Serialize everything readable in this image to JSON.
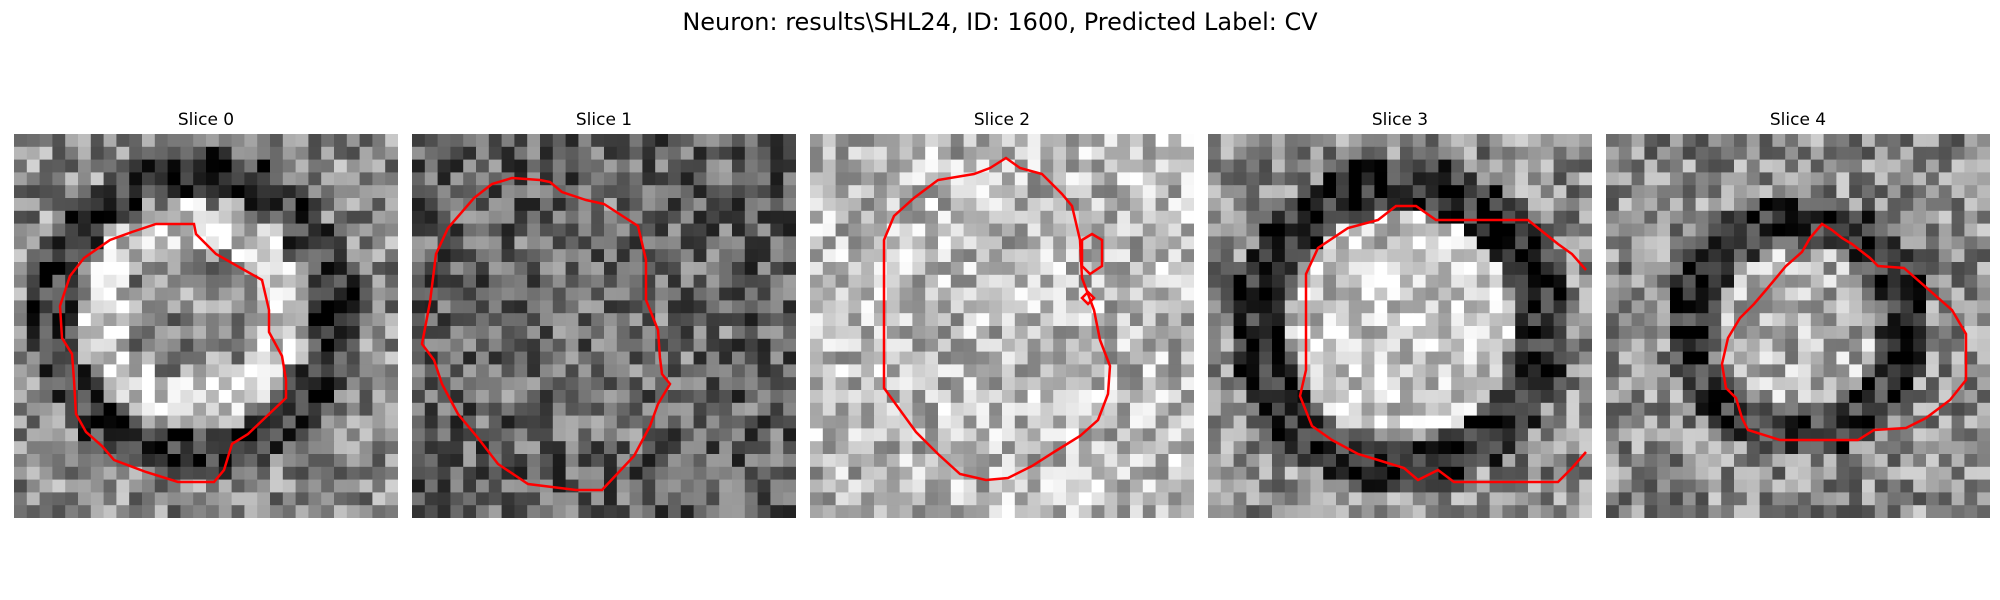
{
  "figure": {
    "title": "Neuron: results\\SHL24, ID: 1600, Predicted Label: CV"
  },
  "slices": [
    {
      "title": "Slice 0",
      "seed": 11,
      "kind": "ring-offset"
    },
    {
      "title": "Slice 1",
      "seed": 23,
      "kind": "dark"
    },
    {
      "title": "Slice 2",
      "seed": 37,
      "kind": "light"
    },
    {
      "title": "Slice 3",
      "seed": 51,
      "kind": "ring"
    },
    {
      "title": "Slice 4",
      "seed": 67,
      "kind": "ring-small"
    }
  ],
  "contour": {
    "color": "#ff0000"
  },
  "colormap": "gray"
}
